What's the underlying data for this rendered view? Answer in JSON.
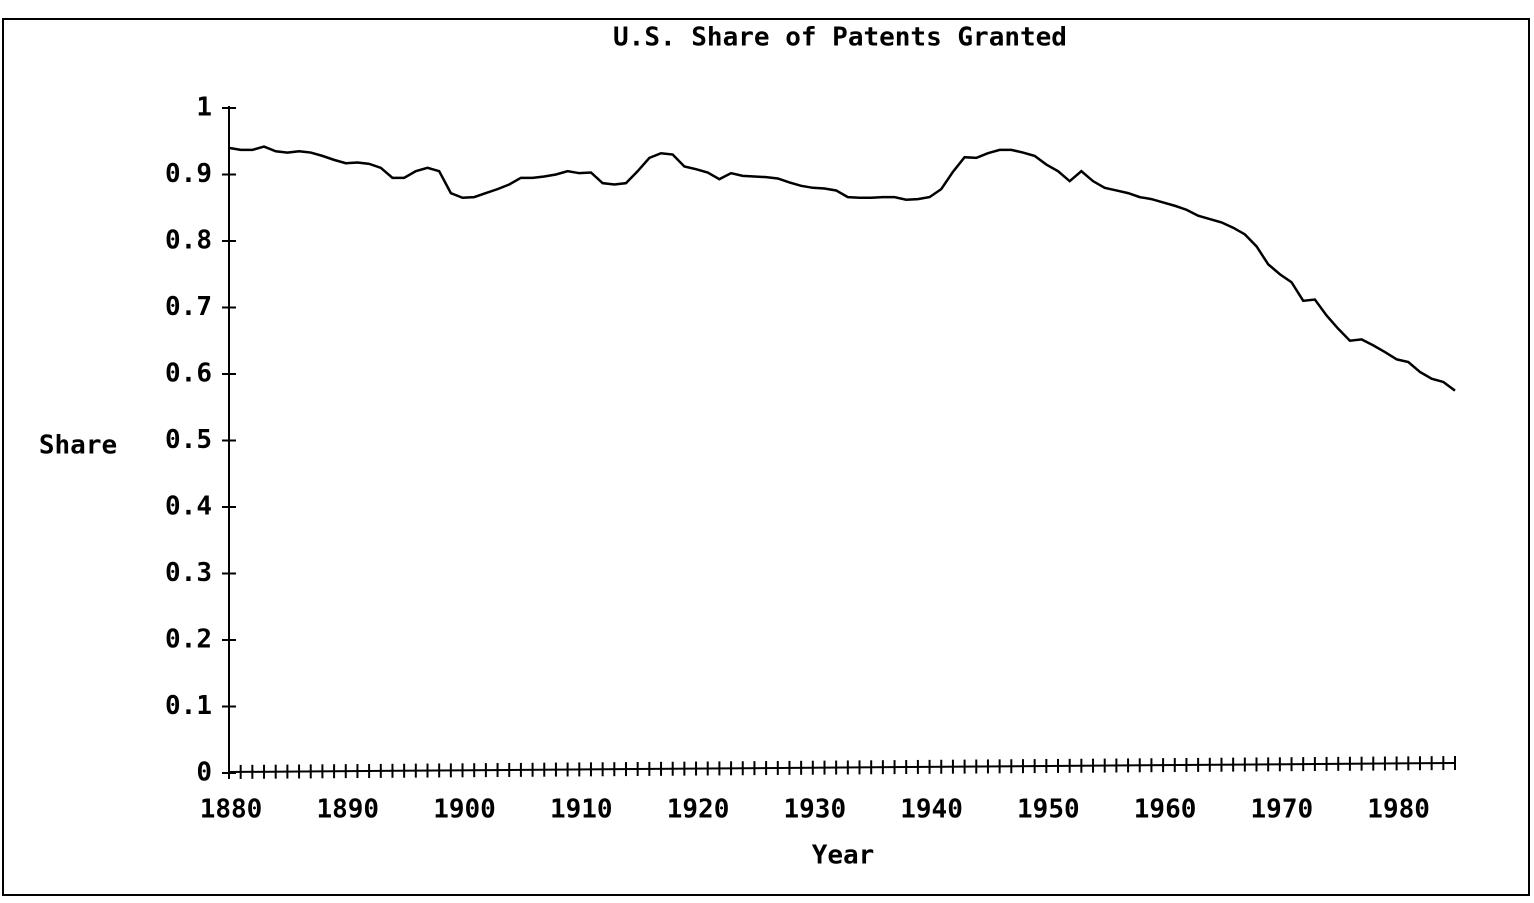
{
  "chart_data": {
    "type": "line",
    "title": "U.S. Share of Patents Granted",
    "xlabel": "Year",
    "ylabel": "Share",
    "x": [
      1880,
      1881,
      1882,
      1883,
      1884,
      1885,
      1886,
      1887,
      1888,
      1889,
      1890,
      1891,
      1892,
      1893,
      1894,
      1895,
      1896,
      1897,
      1898,
      1899,
      1900,
      1901,
      1902,
      1903,
      1904,
      1905,
      1906,
      1907,
      1908,
      1909,
      1910,
      1911,
      1912,
      1913,
      1914,
      1915,
      1916,
      1917,
      1918,
      1919,
      1920,
      1921,
      1922,
      1923,
      1924,
      1925,
      1926,
      1927,
      1928,
      1929,
      1930,
      1931,
      1932,
      1933,
      1934,
      1935,
      1936,
      1937,
      1938,
      1939,
      1940,
      1941,
      1942,
      1943,
      1944,
      1945,
      1946,
      1947,
      1948,
      1949,
      1950,
      1951,
      1952,
      1953,
      1954,
      1955,
      1956,
      1957,
      1958,
      1959,
      1960,
      1961,
      1962,
      1963,
      1964,
      1965,
      1966,
      1967,
      1968,
      1969,
      1970,
      1971,
      1972,
      1973,
      1974,
      1975,
      1976,
      1977,
      1978,
      1979,
      1980,
      1981,
      1982,
      1983,
      1984,
      1985
    ],
    "series": [
      {
        "name": "Share",
        "color": "#000000",
        "values": [
          0.94,
          0.937,
          0.937,
          0.942,
          0.935,
          0.933,
          0.935,
          0.933,
          0.928,
          0.922,
          0.917,
          0.918,
          0.916,
          0.91,
          0.895,
          0.895,
          0.905,
          0.91,
          0.905,
          0.872,
          0.865,
          0.866,
          0.872,
          0.878,
          0.885,
          0.895,
          0.895,
          0.897,
          0.9,
          0.905,
          0.902,
          0.903,
          0.887,
          0.885,
          0.887,
          0.905,
          0.925,
          0.932,
          0.93,
          0.912,
          0.908,
          0.903,
          0.893,
          0.902,
          0.898,
          0.897,
          0.896,
          0.894,
          0.888,
          0.883,
          0.88,
          0.879,
          0.876,
          0.866,
          0.865,
          0.865,
          0.866,
          0.866,
          0.862,
          0.863,
          0.866,
          0.878,
          0.904,
          0.926,
          0.925,
          0.932,
          0.937,
          0.937,
          0.933,
          0.928,
          0.915,
          0.905,
          0.89,
          0.905,
          0.89,
          0.88,
          0.876,
          0.872,
          0.866,
          0.863,
          0.858,
          0.853,
          0.847,
          0.838,
          0.833,
          0.828,
          0.82,
          0.81,
          0.792,
          0.765,
          0.75,
          0.738,
          0.71,
          0.712,
          0.688,
          0.668,
          0.65,
          0.652,
          0.643,
          0.633,
          0.622,
          0.618,
          0.603,
          0.593,
          0.588,
          0.575
        ]
      }
    ],
    "xlim": [
      1880,
      1985
    ],
    "xticks": [
      1880,
      1890,
      1900,
      1910,
      1920,
      1930,
      1940,
      1950,
      1960,
      1970,
      1980
    ],
    "xminorticks": [
      1880,
      1881,
      1882,
      1883,
      1884,
      1885,
      1886,
      1887,
      1888,
      1889,
      1890,
      1891,
      1892,
      1893,
      1894,
      1895,
      1896,
      1897,
      1898,
      1899,
      1900,
      1901,
      1902,
      1903,
      1904,
      1905,
      1906,
      1907,
      1908,
      1909,
      1910,
      1911,
      1912,
      1913,
      1914,
      1915,
      1916,
      1917,
      1918,
      1919,
      1920,
      1921,
      1922,
      1923,
      1924,
      1925,
      1926,
      1927,
      1928,
      1929,
      1930,
      1931,
      1932,
      1933,
      1934,
      1935,
      1936,
      1937,
      1938,
      1939,
      1940,
      1941,
      1942,
      1943,
      1944,
      1945,
      1946,
      1947,
      1948,
      1949,
      1950,
      1951,
      1952,
      1953,
      1954,
      1955,
      1956,
      1957,
      1958,
      1959,
      1960,
      1961,
      1962,
      1963,
      1964,
      1965,
      1966,
      1967,
      1968,
      1969,
      1970,
      1971,
      1972,
      1973,
      1974,
      1975,
      1976,
      1977,
      1978,
      1979,
      1980,
      1981,
      1982,
      1983,
      1984,
      1985
    ],
    "ylim": [
      0,
      1
    ],
    "yticks": [
      0,
      0.1,
      0.2,
      0.3,
      0.4,
      0.5,
      0.6,
      0.7,
      0.8,
      0.9,
      1
    ],
    "grid": false
  }
}
